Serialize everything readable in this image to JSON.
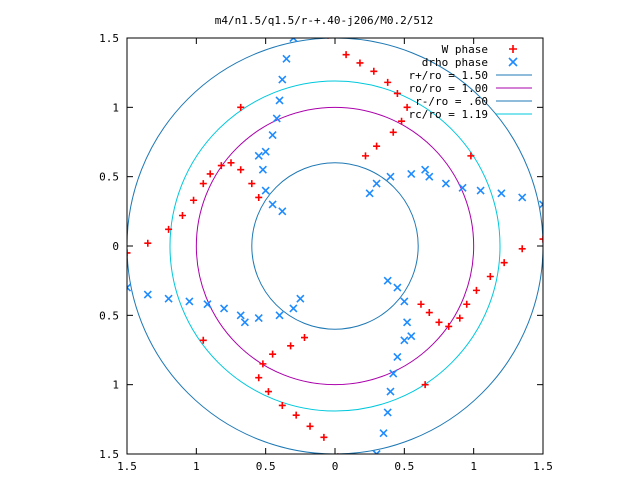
{
  "chart_data": {
    "type": "scatter",
    "title": "m4/n1.5/q1.5/r-+.40-j206/M0.2/512",
    "xlim": [
      -1.5,
      1.5
    ],
    "ylim": [
      -1.5,
      1.5
    ],
    "xticks": [
      -1.5,
      -1,
      -0.5,
      0,
      0.5,
      1,
      1.5
    ],
    "yticks": [
      1.5,
      1,
      0.5,
      0,
      -0.5,
      -1,
      -1.5
    ],
    "xtick_labels": [
      "1.5",
      "1",
      "0.5",
      "0",
      "0.5",
      "1",
      "1.5"
    ],
    "ytick_labels": [
      "1.5",
      "1",
      "0.5",
      "0",
      "0.5",
      "1",
      "1.5"
    ],
    "legend_position": "top-right",
    "grid": false,
    "series": [
      {
        "name": "W phase",
        "marker": "+",
        "color": "#ff0000",
        "points": [
          [
            -1.5,
            -0.05
          ],
          [
            -1.35,
            0.02
          ],
          [
            -1.2,
            0.12
          ],
          [
            -1.1,
            0.22
          ],
          [
            -1.02,
            0.33
          ],
          [
            -0.95,
            0.45
          ],
          [
            -0.9,
            0.52
          ],
          [
            -0.82,
            0.58
          ],
          [
            -0.75,
            0.6
          ],
          [
            -0.68,
            0.55
          ],
          [
            -0.6,
            0.45
          ],
          [
            -0.55,
            0.35
          ],
          [
            -0.05,
            1.52
          ],
          [
            0.08,
            1.38
          ],
          [
            0.18,
            1.32
          ],
          [
            0.28,
            1.26
          ],
          [
            0.38,
            1.18
          ],
          [
            0.45,
            1.1
          ],
          [
            0.52,
            1.0
          ],
          [
            0.48,
            0.9
          ],
          [
            0.42,
            0.82
          ],
          [
            0.3,
            0.72
          ],
          [
            0.22,
            0.65
          ],
          [
            1.5,
            0.05
          ],
          [
            1.35,
            -0.02
          ],
          [
            1.22,
            -0.12
          ],
          [
            1.12,
            -0.22
          ],
          [
            1.02,
            -0.32
          ],
          [
            0.95,
            -0.42
          ],
          [
            0.9,
            -0.52
          ],
          [
            0.82,
            -0.58
          ],
          [
            0.75,
            -0.55
          ],
          [
            0.68,
            -0.48
          ],
          [
            0.62,
            -0.42
          ],
          [
            0.02,
            -1.52
          ],
          [
            -0.08,
            -1.38
          ],
          [
            -0.18,
            -1.3
          ],
          [
            -0.28,
            -1.22
          ],
          [
            -0.38,
            -1.15
          ],
          [
            -0.48,
            -1.05
          ],
          [
            -0.55,
            -0.95
          ],
          [
            -0.52,
            -0.85
          ],
          [
            -0.45,
            -0.78
          ],
          [
            -0.32,
            -0.72
          ],
          [
            -0.22,
            -0.66
          ],
          [
            -0.68,
            1.0
          ],
          [
            0.98,
            0.65
          ],
          [
            0.65,
            -1.0
          ],
          [
            -0.95,
            -0.68
          ]
        ]
      },
      {
        "name": "drho phase",
        "marker": "x",
        "color": "#1e8bff",
        "points": [
          [
            -0.3,
            1.5
          ],
          [
            -0.35,
            1.35
          ],
          [
            -0.38,
            1.2
          ],
          [
            -0.4,
            1.05
          ],
          [
            -0.42,
            0.92
          ],
          [
            -0.45,
            0.8
          ],
          [
            -0.5,
            0.68
          ],
          [
            -0.52,
            0.55
          ],
          [
            -0.5,
            0.4
          ],
          [
            -0.45,
            0.3
          ],
          [
            -0.38,
            0.25
          ],
          [
            1.5,
            0.3
          ],
          [
            1.35,
            0.35
          ],
          [
            1.2,
            0.38
          ],
          [
            1.05,
            0.4
          ],
          [
            0.92,
            0.42
          ],
          [
            0.8,
            0.45
          ],
          [
            0.68,
            0.5
          ],
          [
            0.55,
            0.52
          ],
          [
            0.4,
            0.5
          ],
          [
            0.3,
            0.45
          ],
          [
            0.25,
            0.38
          ],
          [
            0.3,
            -1.5
          ],
          [
            0.35,
            -1.35
          ],
          [
            0.38,
            -1.2
          ],
          [
            0.4,
            -1.05
          ],
          [
            0.42,
            -0.92
          ],
          [
            0.45,
            -0.8
          ],
          [
            0.5,
            -0.68
          ],
          [
            0.52,
            -0.55
          ],
          [
            0.5,
            -0.4
          ],
          [
            0.45,
            -0.3
          ],
          [
            0.38,
            -0.25
          ],
          [
            -1.5,
            -0.3
          ],
          [
            -1.35,
            -0.35
          ],
          [
            -1.2,
            -0.38
          ],
          [
            -1.05,
            -0.4
          ],
          [
            -0.92,
            -0.42
          ],
          [
            -0.8,
            -0.45
          ],
          [
            -0.68,
            -0.5
          ],
          [
            -0.55,
            -0.52
          ],
          [
            -0.4,
            -0.5
          ],
          [
            -0.3,
            -0.45
          ],
          [
            -0.25,
            -0.38
          ],
          [
            -0.55,
            0.65
          ],
          [
            0.65,
            0.55
          ],
          [
            0.55,
            -0.65
          ],
          [
            -0.65,
            -0.55
          ]
        ]
      }
    ],
    "circles": [
      {
        "name": "r+/ro = 1.50",
        "r": 1.5,
        "color": "#1e78b4"
      },
      {
        "name": "ro/ro = 1.00",
        "r": 1.0,
        "color": "#aa00aa"
      },
      {
        "name": "r-/ro = .60",
        "r": 0.6,
        "color": "#1e78b4"
      },
      {
        "name": "rc/ro = 1.19",
        "r": 1.19,
        "color": "#00c8dc"
      }
    ]
  }
}
